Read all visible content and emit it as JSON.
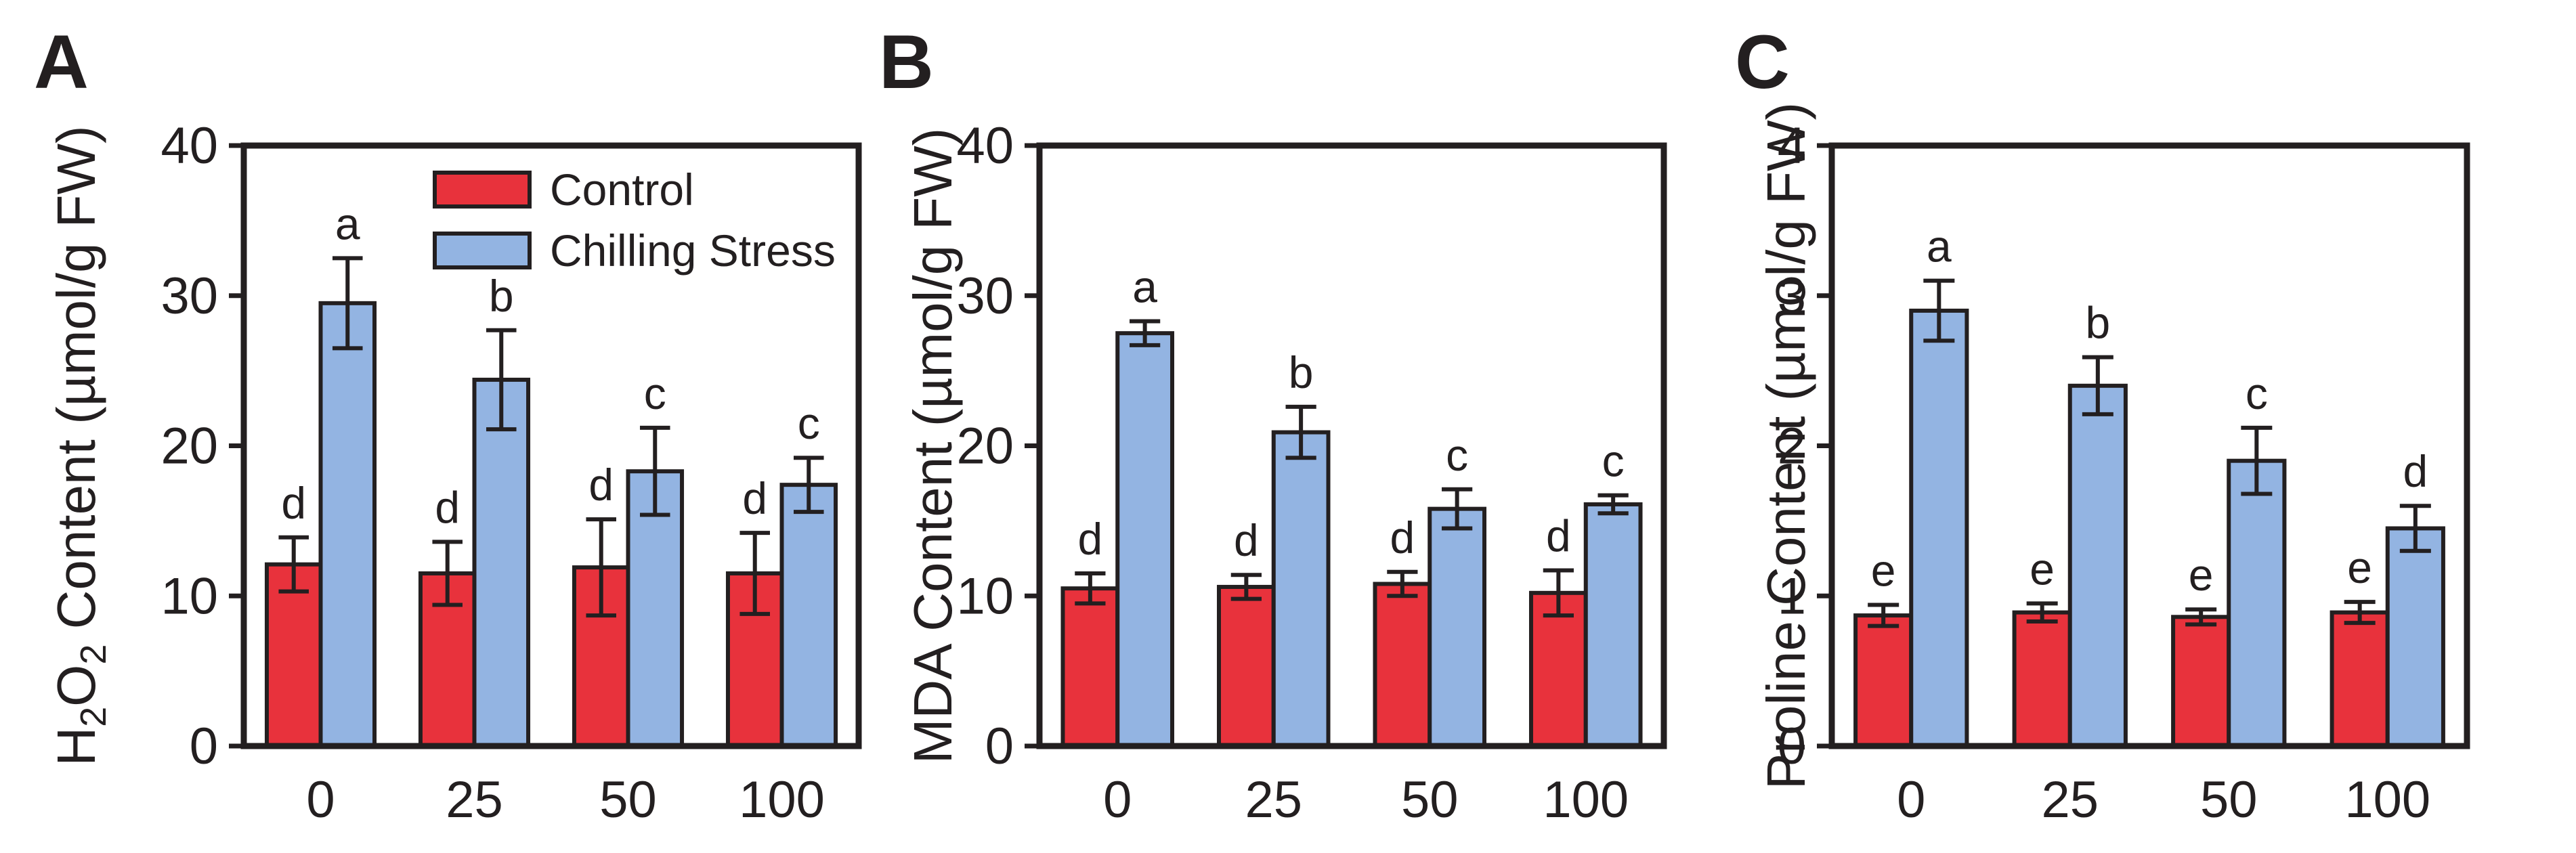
{
  "figure": {
    "series": [
      {
        "name": "Control",
        "color": "#e8323c"
      },
      {
        "name": "Chilling Stress",
        "color": "#93b4e2"
      }
    ]
  },
  "chart_data": [
    {
      "type": "bar",
      "panel_label": "A",
      "ylabel_parts": [
        "H",
        "2",
        "O",
        "2",
        " Content (µmol/g FW)"
      ],
      "categories": [
        "0",
        "25",
        "50",
        "100"
      ],
      "ylim": [
        0,
        40
      ],
      "yticks": [
        0,
        10,
        20,
        30,
        40
      ],
      "legend": {
        "show": true,
        "placement": "top-center"
      },
      "series": [
        {
          "name": "Control",
          "values": [
            12.1,
            11.5,
            11.9,
            11.5
          ],
          "errors": [
            1.8,
            2.1,
            3.2,
            2.7
          ],
          "letters": [
            "d",
            "d",
            "d",
            "d"
          ]
        },
        {
          "name": "Chilling Stress",
          "values": [
            29.5,
            24.4,
            18.3,
            17.4
          ],
          "errors": [
            3.0,
            3.3,
            2.9,
            1.8
          ],
          "letters": [
            "a",
            "b",
            "c",
            "c"
          ]
        }
      ]
    },
    {
      "type": "bar",
      "panel_label": "B",
      "ylabel_parts": [
        "MDA Content (µmol/g FW)"
      ],
      "categories": [
        "0",
        "25",
        "50",
        "100"
      ],
      "ylim": [
        0,
        40
      ],
      "yticks": [
        0,
        10,
        20,
        30,
        40
      ],
      "legend": {
        "show": false
      },
      "series": [
        {
          "name": "Control",
          "values": [
            10.5,
            10.6,
            10.8,
            10.2
          ],
          "errors": [
            1.0,
            0.8,
            0.8,
            1.5
          ],
          "letters": [
            "d",
            "d",
            "d",
            "d"
          ]
        },
        {
          "name": "Chilling Stress",
          "values": [
            27.5,
            20.9,
            15.8,
            16.1
          ],
          "errors": [
            0.8,
            1.7,
            1.3,
            0.6
          ],
          "letters": [
            "a",
            "b",
            "c",
            "c"
          ]
        }
      ]
    },
    {
      "type": "bar",
      "panel_label": "C",
      "ylabel_parts": [
        "Proline Content (µmol/g FW)"
      ],
      "categories": [
        "0",
        "25",
        "50",
        "100"
      ],
      "ylim": [
        0,
        4
      ],
      "yticks": [
        0,
        1,
        2,
        3,
        4
      ],
      "legend": {
        "show": false
      },
      "series": [
        {
          "name": "Control",
          "values": [
            0.87,
            0.89,
            0.86,
            0.89
          ],
          "errors": [
            0.07,
            0.06,
            0.05,
            0.07
          ],
          "letters": [
            "e",
            "e",
            "e",
            "e"
          ]
        },
        {
          "name": "Chilling Stress",
          "values": [
            2.9,
            2.4,
            1.9,
            1.45
          ],
          "errors": [
            0.2,
            0.19,
            0.22,
            0.15
          ],
          "letters": [
            "a",
            "b",
            "c",
            "d"
          ]
        }
      ]
    }
  ]
}
